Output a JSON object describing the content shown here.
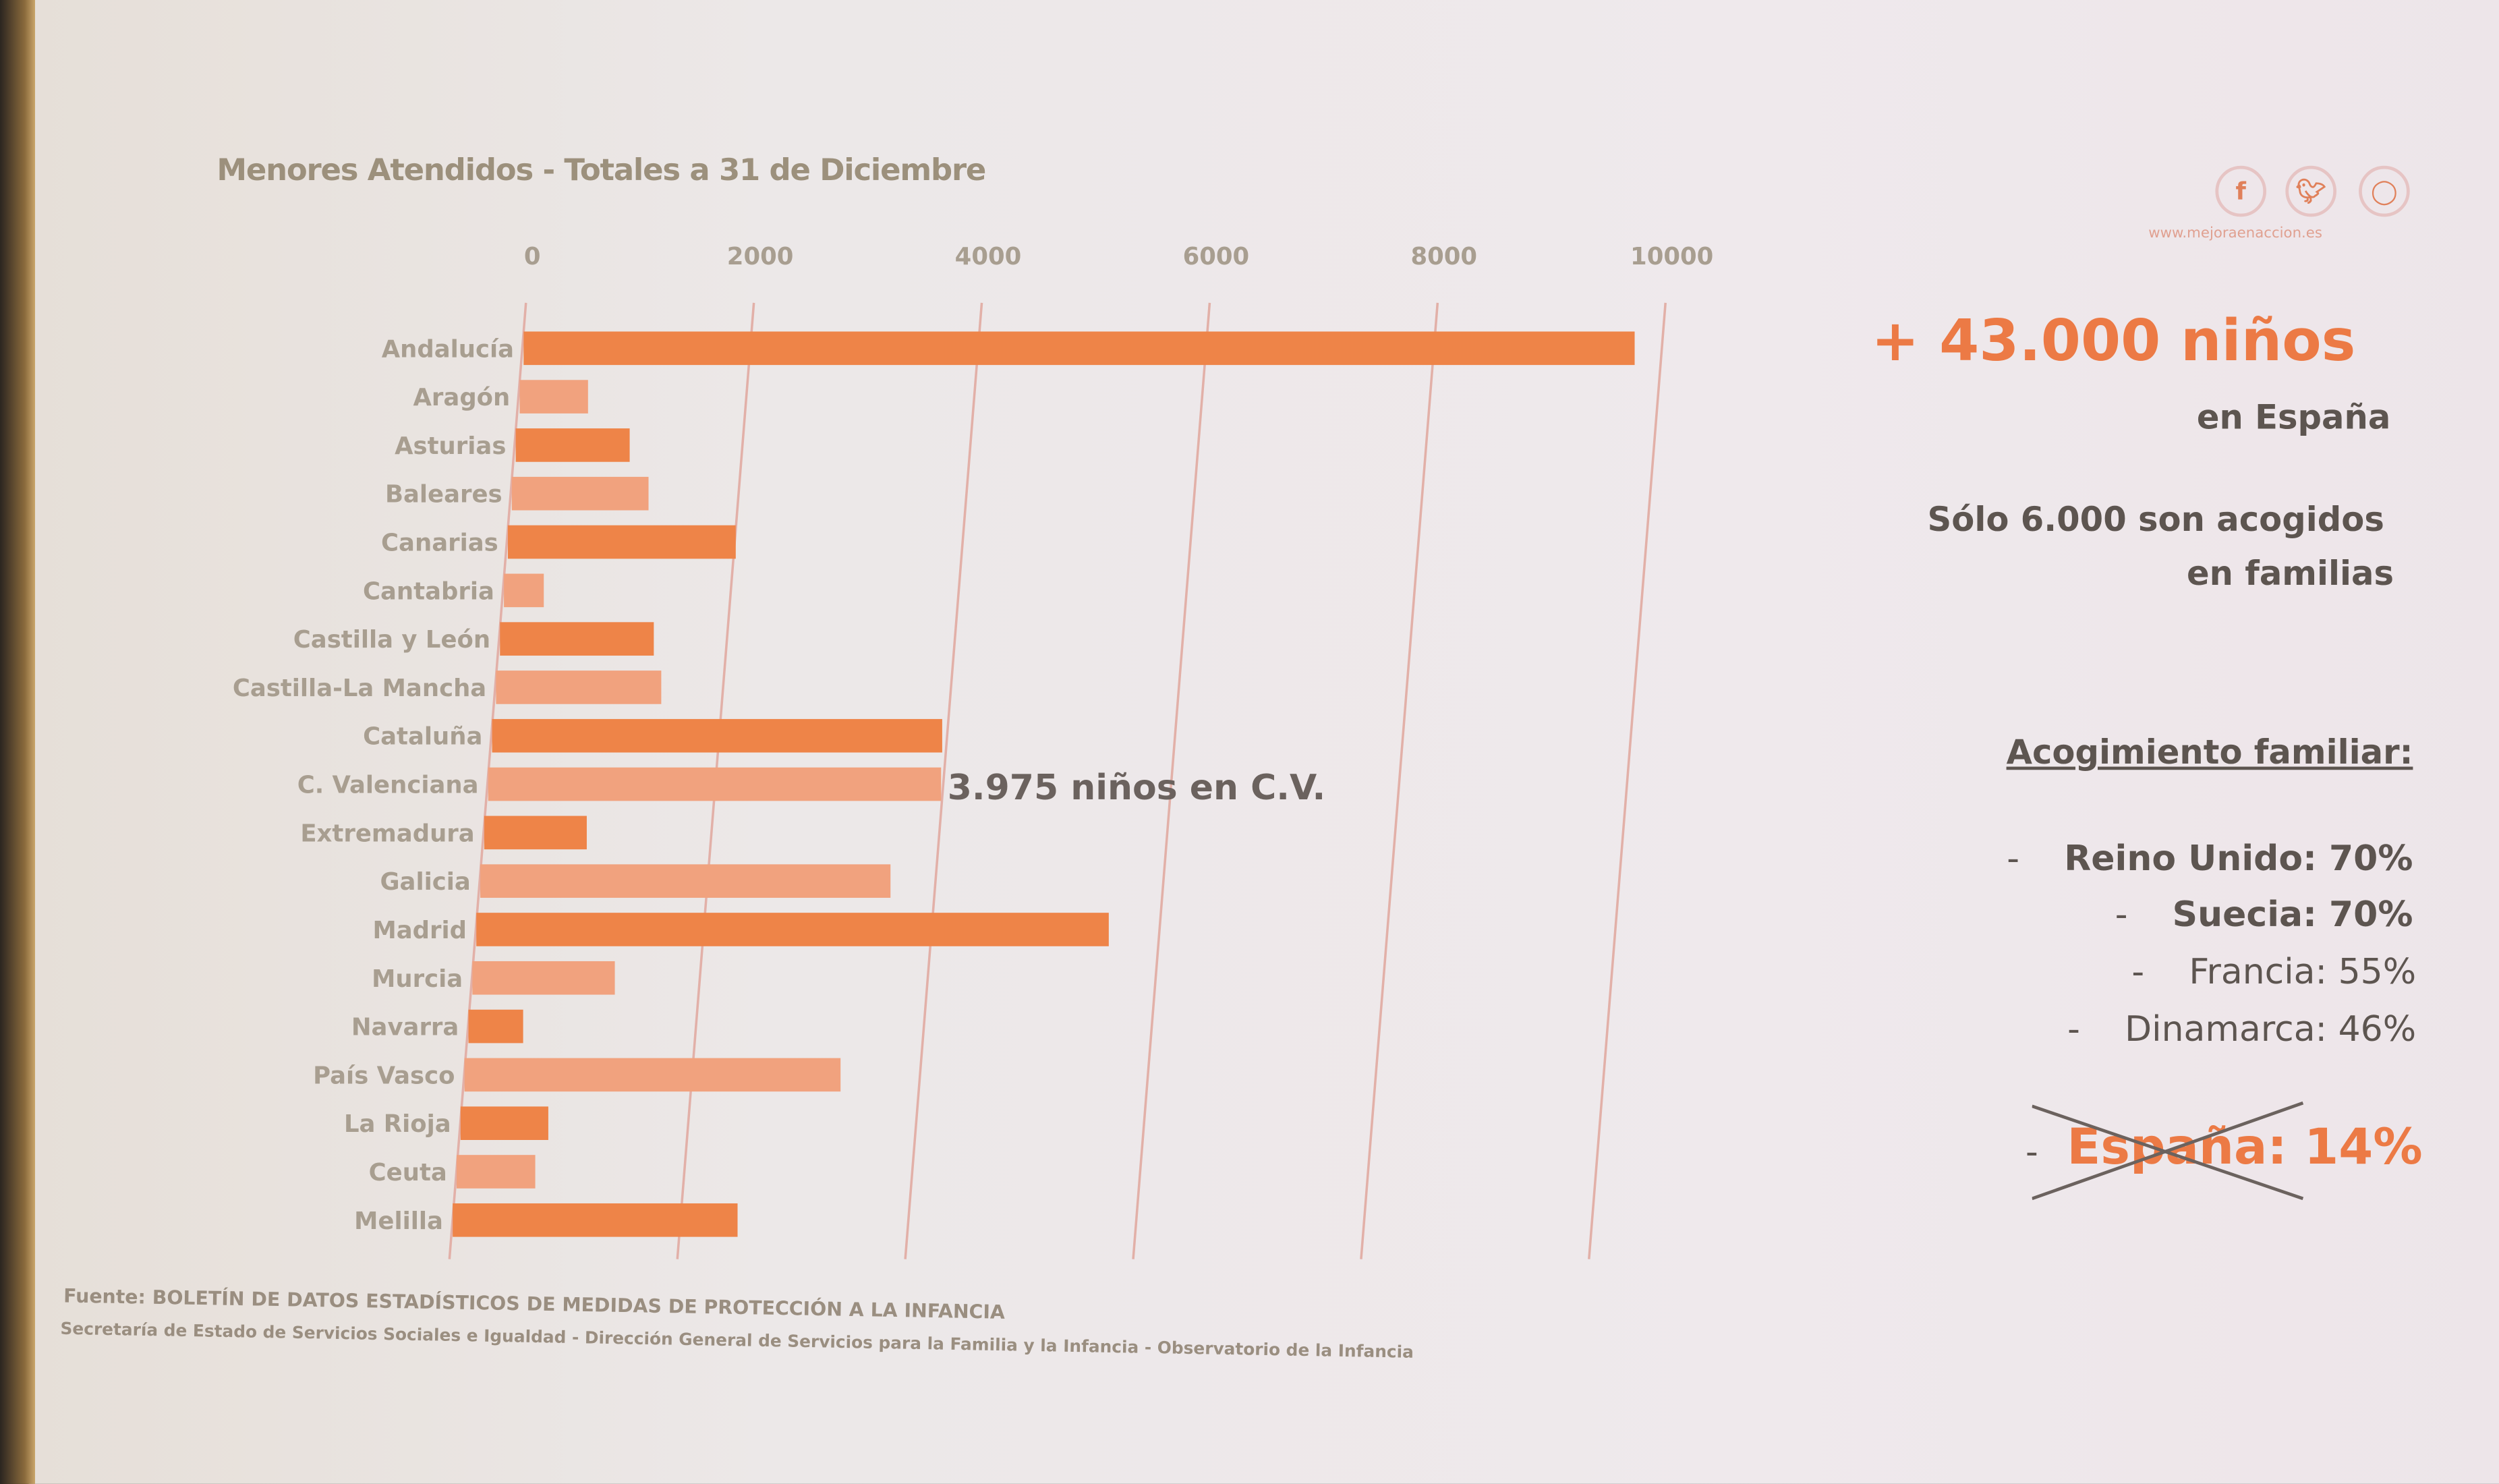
{
  "chart_data": {
    "type": "bar",
    "orientation": "horizontal",
    "title": "Menores Atendidos",
    "subtitle": "- Totales a 31 de Diciembre",
    "xlim": [
      0,
      10000
    ],
    "xticks": [
      "0",
      "2000",
      "4000",
      "6000",
      "8000",
      "10000"
    ],
    "grid": true,
    "categories": [
      "Andalucía",
      "Aragón",
      "Asturias",
      "Baleares",
      "Canarias",
      "Cantabria",
      "Castilla y León",
      "Castilla-La Mancha",
      "Cataluña",
      "C. Valenciana",
      "Extremadura",
      "Galicia",
      "Madrid",
      "Murcia",
      "Navarra",
      "País Vasco",
      "La Rioja",
      "Ceuta",
      "Melilla"
    ],
    "values": [
      9750,
      600,
      1000,
      1200,
      2000,
      350,
      1350,
      1450,
      3950,
      3975,
      900,
      3600,
      5550,
      1250,
      480,
      3300,
      770,
      690,
      2500
    ],
    "annotation": "3.975 niños en C.V.",
    "colors": {
      "dark": "#ee8448",
      "light": "#f1a27e"
    }
  },
  "source": {
    "line1": "Fuente: BOLETÍN DE DATOS ESTADÍSTICOS DE MEDIDAS DE PROTECCIÓN A LA INFANCIA",
    "line2": "Secretaría de Estado de Servicios Sociales e Igualdad - Dirección General de Servicios para la Familia y la Infancia - Observatorio de la Infancia"
  },
  "social": {
    "icons": [
      "facebook-icon",
      "twitter-icon",
      "instagram-icon"
    ],
    "url": "www.mejoraenaccion.es"
  },
  "side": {
    "headline": "+ 43.000 niños",
    "headline_sub": "en España",
    "line1": "Sólo 6.000 son acogidos",
    "line2": "en familias",
    "heading": "Acogimiento familiar:",
    "items": [
      {
        "dash": "-",
        "text": "Reino Unido: 70%"
      },
      {
        "dash": "-",
        "text": "Suecia: 70%"
      },
      {
        "dash": "-",
        "text": "Francia: 55%"
      },
      {
        "dash": "-",
        "text": "Dinamarca: 46%"
      }
    ],
    "spain_dash": "-",
    "spain_name": "España",
    "spain_value": ": 14%",
    "accent": "#ec7a45"
  }
}
